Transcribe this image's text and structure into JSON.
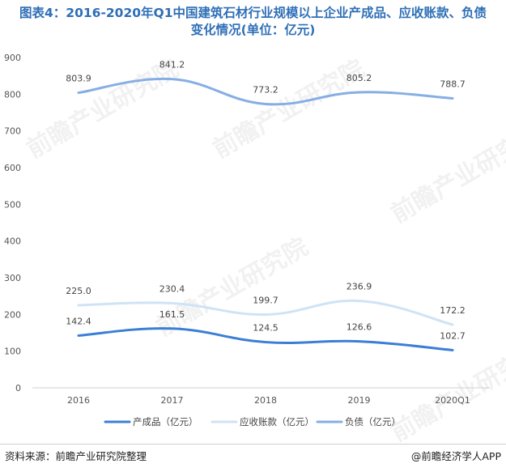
{
  "title_line1": "图表4：2016-2020年Q1中国建筑石材行业规模以上企业产成品、应收账款、负债",
  "title_line2": "变化情况(单位：亿元)",
  "footer": {
    "source": "资料来源：前瞻产业研究院整理",
    "brand": "@前瞻经济学人APP"
  },
  "watermark": "前瞻产业研究院",
  "chart_data": {
    "type": "line",
    "smooth": true,
    "categories": [
      "2016",
      "2017",
      "2018",
      "2019",
      "2020Q1"
    ],
    "ylim": [
      0,
      900
    ],
    "yticks": [
      0,
      100,
      200,
      300,
      400,
      500,
      600,
      700,
      800,
      900
    ],
    "grid": false,
    "legend_position": "bottom",
    "series": [
      {
        "name": "产成品（亿元）",
        "color": "#3a7fd5",
        "values": [
          142.4,
          161.5,
          124.5,
          126.6,
          102.7
        ]
      },
      {
        "name": "应收账款（亿元）",
        "color": "#cfe3f6",
        "values": [
          225.0,
          230.4,
          199.7,
          236.9,
          172.2
        ]
      },
      {
        "name": "负债（亿元）",
        "color": "#86aee4",
        "values": [
          803.9,
          841.2,
          773.2,
          805.2,
          788.7
        ]
      }
    ]
  }
}
